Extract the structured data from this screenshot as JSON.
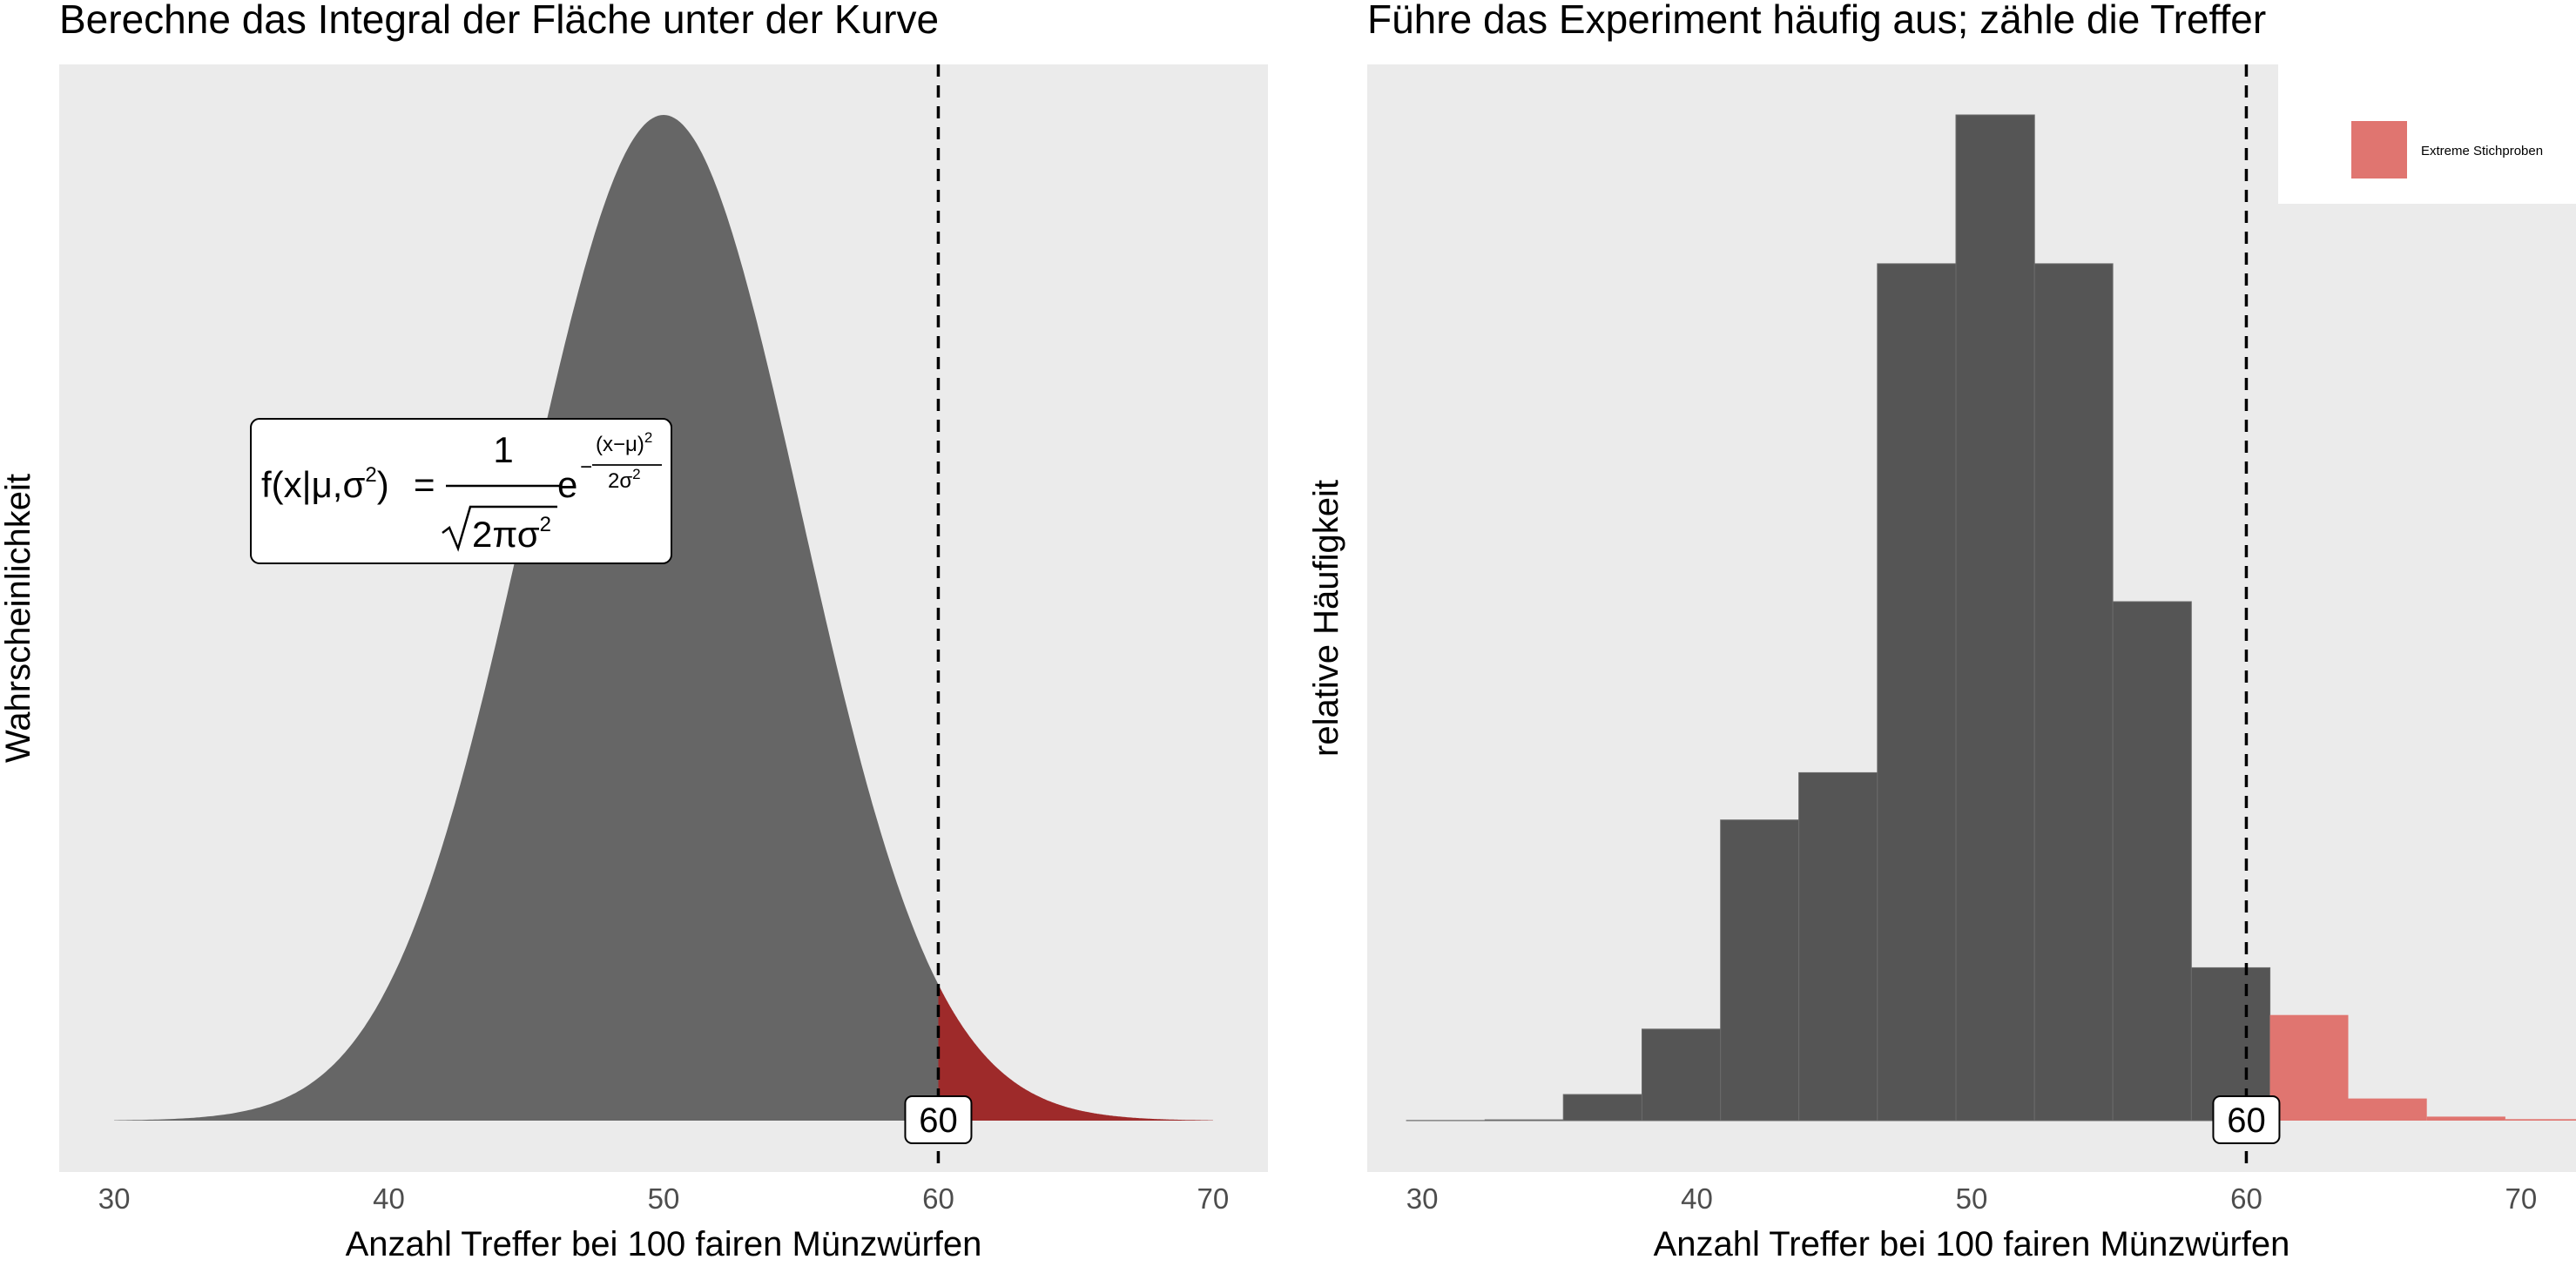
{
  "colors": {
    "panel_bg": "#ebebeb",
    "curve_fill": "#666666",
    "tail_fill": "#9e2a2a",
    "bar_fill": "#555555",
    "extreme_fill": "#e07570",
    "vline": "#000000"
  },
  "chart_data": [
    {
      "type": "area",
      "title": "Berechne das Integral der Fläche unter der Kurve",
      "xlabel": "Anzahl Treffer bei 100 fairen Münzwürfen",
      "ylabel": "Wahrscheinlichkeit",
      "xlim": [
        28,
        72
      ],
      "x_ticks": [
        30,
        40,
        50,
        60,
        70
      ],
      "distribution": {
        "name": "normal",
        "mean": 50,
        "sd": 5,
        "x_range": [
          30,
          70
        ]
      },
      "shaded_from": 60,
      "vline": {
        "x": 60,
        "label": "60"
      },
      "formula": {
        "lhs_f": "f(x|",
        "lhs_mu": "μ",
        "lhs_sigma": ",σ",
        "lhs_close": ")",
        "sq": "2",
        "equals": "=",
        "numerator": "1",
        "denominator": "2πσ",
        "e": "e",
        "exp_num": "(x−μ)",
        "exp_den": "2σ",
        "minus": "−"
      },
      "grid": false
    },
    {
      "type": "bar",
      "title": "Führe das Experiment häufig aus; zähle die Treffer",
      "xlabel": "Anzahl Treffer bei 100 fairen Münzwürfen",
      "ylabel": "relative Häufigkeit",
      "xlim": [
        28,
        72
      ],
      "x_ticks": [
        30,
        40,
        50,
        60,
        70
      ],
      "bin_width": 2.857,
      "bins": [
        {
          "x0": 29.43,
          "x1": 32.29,
          "value": 0.0002,
          "extreme": false
        },
        {
          "x0": 32.29,
          "x1": 35.14,
          "value": 0.0008,
          "extreme": false
        },
        {
          "x0": 35.14,
          "x1": 38.0,
          "value": 0.026,
          "extreme": false
        },
        {
          "x0": 38.0,
          "x1": 40.86,
          "value": 0.091,
          "extreme": false
        },
        {
          "x0": 40.86,
          "x1": 43.71,
          "value": 0.299,
          "extreme": false
        },
        {
          "x0": 43.71,
          "x1": 46.57,
          "value": 0.346,
          "extreme": false
        },
        {
          "x0": 46.57,
          "x1": 49.43,
          "value": 0.852,
          "extreme": false
        },
        {
          "x0": 49.43,
          "x1": 52.29,
          "value": 1.0,
          "extreme": false
        },
        {
          "x0": 52.29,
          "x1": 55.14,
          "value": 0.852,
          "extreme": false
        },
        {
          "x0": 55.14,
          "x1": 58.0,
          "value": 0.516,
          "extreme": false
        },
        {
          "x0": 58.0,
          "x1": 60.86,
          "value": 0.152,
          "extreme": false
        },
        {
          "x0": 60.86,
          "x1": 63.71,
          "value": 0.105,
          "extreme": true
        },
        {
          "x0": 63.71,
          "x1": 66.57,
          "value": 0.022,
          "extreme": true
        },
        {
          "x0": 66.57,
          "x1": 69.43,
          "value": 0.004,
          "extreme": true
        },
        {
          "x0": 69.43,
          "x1": 72.29,
          "value": 0.0015,
          "extreme": true
        }
      ],
      "vline": {
        "x": 60,
        "label": "60"
      },
      "legend": {
        "entries": [
          "Extreme Stichproben"
        ],
        "position": "top-right"
      },
      "grid": false
    }
  ]
}
